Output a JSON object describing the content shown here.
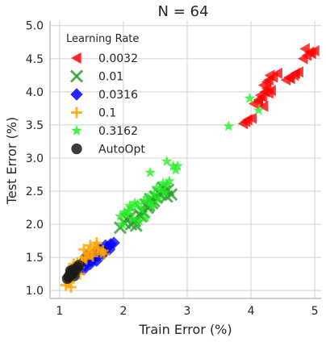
{
  "chart_data": {
    "type": "scatter",
    "title": "N = 64",
    "xlabel": "Train Error (%)",
    "ylabel": "Test Error (%)",
    "xlim": [
      0.85,
      5.1
    ],
    "ylim": [
      0.88,
      5.07
    ],
    "xticks": [
      1,
      2,
      3,
      4,
      5
    ],
    "yticks": [
      1.0,
      1.5,
      2.0,
      2.5,
      3.0,
      3.5,
      4.0,
      4.5,
      5.0
    ],
    "xtick_labels": [
      "1",
      "2",
      "3",
      "4",
      "5"
    ],
    "ytick_labels": [
      "1.0",
      "1.5",
      "2.0",
      "2.5",
      "3.0",
      "3.5",
      "4.0",
      "4.5",
      "5.0"
    ],
    "grid": true,
    "legend": {
      "title": "Learning Rate",
      "placement": "top-left",
      "entries": [
        "0.0032",
        "0.01",
        "0.0316",
        "0.1",
        "0.3162",
        "AutoOpt"
      ]
    },
    "series": [
      {
        "name": "0.0032",
        "marker": "triangle-left",
        "color": "#ff0000",
        "x": [
          3.88,
          3.95,
          4.02,
          3.92,
          4.05,
          4.12,
          4.15,
          4.22,
          4.18,
          4.25,
          4.2,
          4.28,
          4.35,
          4.3,
          4.25,
          4.42,
          4.55,
          4.6,
          4.68,
          4.75,
          4.88,
          4.92,
          5.0,
          4.82,
          4.95,
          4.7,
          4.62,
          4.85,
          4.28,
          4.12,
          4.2,
          4.32
        ],
        "y": [
          3.52,
          3.58,
          3.6,
          3.55,
          3.82,
          3.88,
          3.95,
          4.0,
          3.92,
          4.05,
          4.1,
          4.18,
          4.22,
          4.25,
          4.15,
          4.28,
          4.18,
          4.22,
          4.25,
          4.3,
          4.55,
          4.6,
          4.62,
          4.5,
          4.58,
          4.28,
          4.2,
          4.65,
          3.98,
          3.85,
          3.78,
          4.02
        ]
      },
      {
        "name": "0.01",
        "marker": "x",
        "color": "#2ca02c",
        "x": [
          1.95,
          2.02,
          2.1,
          2.18,
          2.25,
          2.3,
          2.38,
          2.45,
          2.52,
          2.58,
          2.65,
          2.7,
          2.75,
          2.12,
          2.2,
          2.28,
          2.35,
          2.42,
          2.5,
          2.55,
          2.62,
          2.05,
          2.32,
          2.48,
          2.68,
          2.4
        ],
        "y": [
          1.95,
          2.02,
          2.1,
          2.05,
          2.15,
          2.2,
          2.25,
          2.32,
          2.4,
          2.45,
          2.5,
          2.52,
          2.45,
          2.0,
          1.98,
          2.12,
          2.3,
          2.38,
          2.42,
          2.48,
          2.55,
          2.08,
          2.18,
          2.35,
          2.42,
          2.28
        ]
      },
      {
        "name": "0.0316",
        "marker": "diamond",
        "color": "#0000ff",
        "x": [
          1.3,
          1.35,
          1.4,
          1.45,
          1.5,
          1.55,
          1.6,
          1.65,
          1.7,
          1.75,
          1.8,
          1.85,
          1.42,
          1.52,
          1.62,
          1.72,
          1.58,
          1.68,
          1.78,
          1.48,
          1.38,
          1.56
        ],
        "y": [
          1.35,
          1.42,
          1.38,
          1.48,
          1.45,
          1.55,
          1.52,
          1.6,
          1.58,
          1.65,
          1.7,
          1.72,
          1.52,
          1.5,
          1.62,
          1.68,
          1.45,
          1.55,
          1.62,
          1.4,
          1.32,
          1.58
        ]
      },
      {
        "name": "0.1",
        "marker": "plus",
        "color": "#ffa500",
        "x": [
          1.1,
          1.15,
          1.2,
          1.25,
          1.3,
          1.35,
          1.4,
          1.45,
          1.5,
          1.55,
          1.6,
          1.65,
          1.7,
          1.18,
          1.28,
          1.38,
          1.48,
          1.58,
          1.68,
          1.22,
          1.32,
          1.42,
          1.52
        ],
        "y": [
          1.08,
          1.12,
          1.2,
          1.3,
          1.35,
          1.45,
          1.5,
          1.58,
          1.55,
          1.65,
          1.62,
          1.58,
          1.55,
          1.05,
          1.42,
          1.62,
          1.68,
          1.72,
          1.6,
          1.4,
          1.25,
          1.48,
          1.52
        ]
      },
      {
        "name": "0.3162",
        "marker": "star",
        "color": "#22ee22",
        "x": [
          1.95,
          2.02,
          2.08,
          2.12,
          2.18,
          2.22,
          2.28,
          2.32,
          2.38,
          2.42,
          2.48,
          2.52,
          2.58,
          2.62,
          2.68,
          2.72,
          2.78,
          2.45,
          2.55,
          2.65,
          2.35,
          2.25,
          2.15,
          2.05,
          3.65,
          3.98,
          4.12,
          2.82,
          2.85,
          2.68,
          2.42,
          1.98,
          2.1
        ],
        "y": [
          2.12,
          2.18,
          2.2,
          2.25,
          2.32,
          2.3,
          2.22,
          2.35,
          2.4,
          2.32,
          2.45,
          2.55,
          2.52,
          2.62,
          2.6,
          2.65,
          2.88,
          2.28,
          2.38,
          2.48,
          2.1,
          2.05,
          2.08,
          2.15,
          3.48,
          3.9,
          3.72,
          2.82,
          2.88,
          2.95,
          2.78,
          2.0,
          2.28
        ]
      },
      {
        "name": "AutoOpt",
        "marker": "circle",
        "color": "#1a1a1a",
        "x": [
          1.12,
          1.15,
          1.18,
          1.2,
          1.22,
          1.25,
          1.28,
          1.3,
          1.14,
          1.17,
          1.23
        ],
        "y": [
          1.18,
          1.22,
          1.28,
          1.25,
          1.32,
          1.3,
          1.35,
          1.38,
          1.2,
          1.3,
          1.22
        ]
      }
    ]
  }
}
